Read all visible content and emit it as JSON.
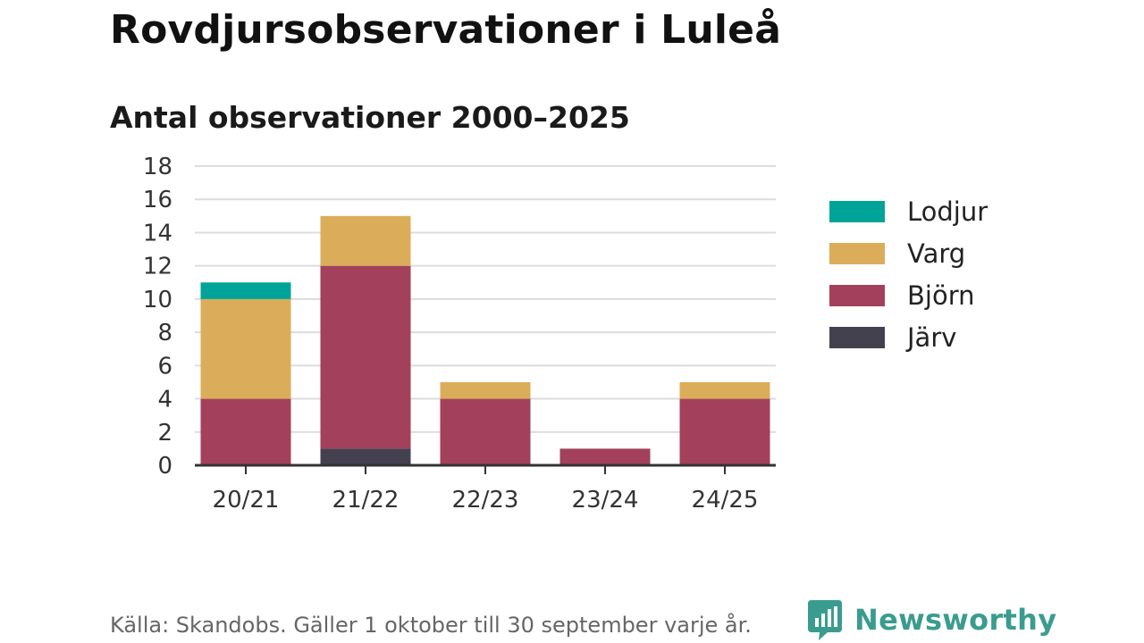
{
  "header": {
    "title": "Rovdjursobservationer i Luleå",
    "subtitle": "Antal observationer 2000–2025"
  },
  "chart_data": {
    "type": "bar",
    "stacked": true,
    "title": "Antal observationer 2000–2025",
    "xlabel": "",
    "ylabel": "",
    "ylim": [
      0,
      18
    ],
    "yticks": [
      "0",
      "2",
      "4",
      "6",
      "8",
      "10",
      "12",
      "14",
      "16",
      "18"
    ],
    "grid": true,
    "legend_position": "right",
    "categories": [
      "20/21",
      "21/22",
      "22/23",
      "23/24",
      "24/25"
    ],
    "series": [
      {
        "name": "Järv",
        "color": "#43404f",
        "values": [
          0,
          1,
          0,
          0,
          0
        ]
      },
      {
        "name": "Björn",
        "color": "#a3405c",
        "values": [
          4,
          11,
          4,
          1,
          4
        ]
      },
      {
        "name": "Varg",
        "color": "#dbad5b",
        "values": [
          6,
          3,
          1,
          0,
          1
        ]
      },
      {
        "name": "Lodjur",
        "color": "#00a398",
        "values": [
          1,
          0,
          0,
          0,
          0
        ]
      }
    ],
    "legend_order": [
      "Lodjur",
      "Varg",
      "Björn",
      "Järv"
    ]
  },
  "footer": {
    "source": "Källa: Skandobs. Gäller 1 oktober till 30 september varje år.",
    "brand": "Newsworthy"
  },
  "colors": {
    "brand": "#3a9c8e",
    "gridline": "#dcdcdc",
    "axis": "#333333"
  }
}
